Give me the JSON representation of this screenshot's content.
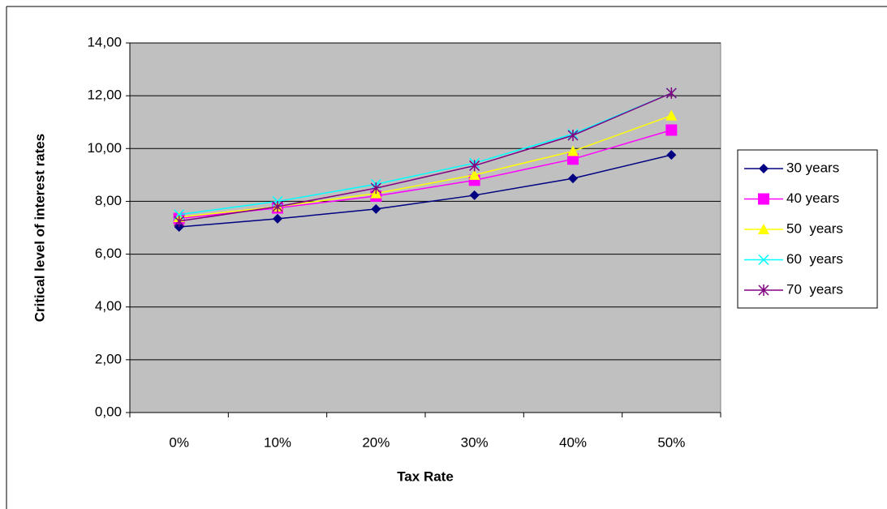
{
  "chart_data": {
    "type": "line",
    "x_label": "Tax Rate",
    "y_label": "Critical level of interest rates",
    "categories": [
      "0%",
      "10%",
      "20%",
      "30%",
      "40%",
      "50%"
    ],
    "series": [
      {
        "name": "30 years",
        "color": "#000080",
        "marker": "diamond",
        "values": [
          7.03,
          7.34,
          7.71,
          8.23,
          8.87,
          9.76
        ]
      },
      {
        "name": "40 years",
        "color": "#ff00ff",
        "marker": "square",
        "values": [
          7.35,
          7.75,
          8.2,
          8.8,
          9.6,
          10.7
        ]
      },
      {
        "name": "50  years",
        "color": "#ffff00",
        "marker": "triangle",
        "values": [
          7.4,
          7.8,
          8.3,
          9.0,
          9.9,
          11.25
        ]
      },
      {
        "name": "60  years",
        "color": "#00ffff",
        "marker": "x",
        "values": [
          7.5,
          8.0,
          8.65,
          9.45,
          10.55,
          12.1
        ]
      },
      {
        "name": "70  years",
        "color": "#800080",
        "marker": "star",
        "values": [
          7.25,
          7.8,
          8.5,
          9.35,
          10.5,
          12.1
        ]
      }
    ],
    "ylim": [
      0,
      14
    ],
    "yticks": [
      {
        "value": 0,
        "label": "0,00"
      },
      {
        "value": 2,
        "label": "2,00"
      },
      {
        "value": 4,
        "label": "4,00"
      },
      {
        "value": 6,
        "label": "6,00"
      },
      {
        "value": 8,
        "label": "8,00"
      },
      {
        "value": 10,
        "label": "10,00"
      },
      {
        "value": 12,
        "label": "12,00"
      },
      {
        "value": 14,
        "label": "14,00"
      }
    ],
    "grid": true,
    "plot_background": "#c0c0c0",
    "legend": "right"
  }
}
